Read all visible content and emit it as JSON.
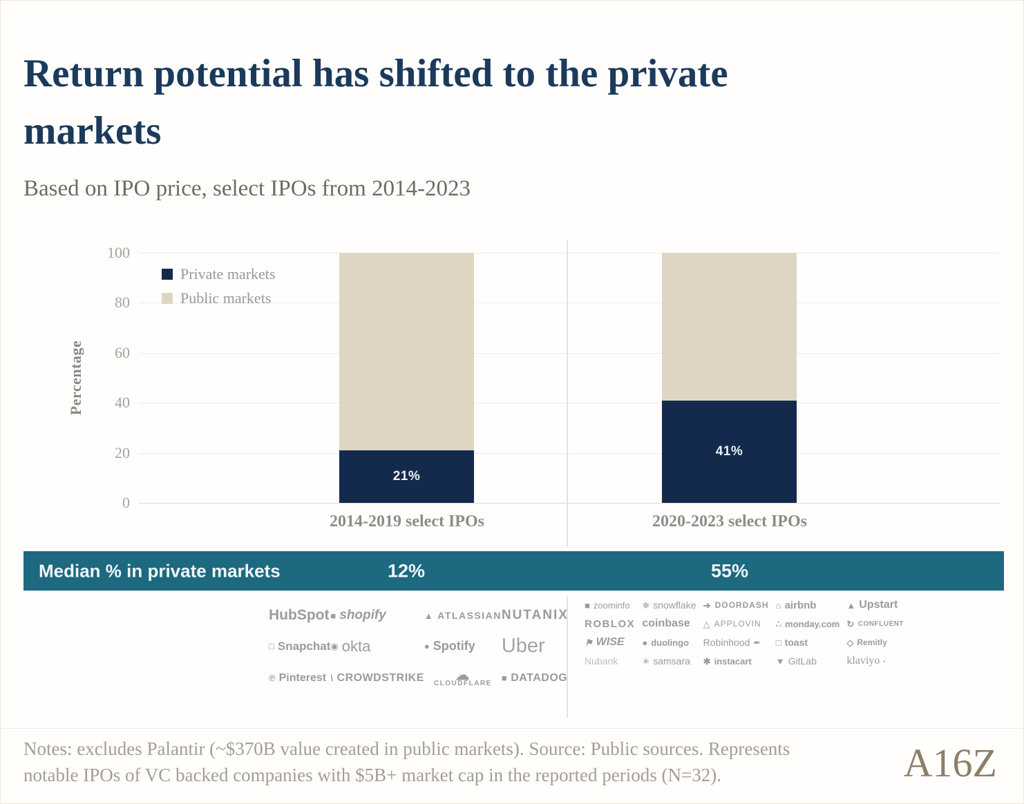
{
  "header": {
    "title_line1": "Return potential has shifted to the private",
    "title_line2": "markets",
    "subtitle": "Based on IPO price, select IPOs from 2014-2023"
  },
  "chart_data": {
    "type": "bar",
    "stacked": true,
    "title": "Return potential has shifted to the private markets",
    "subtitle": "Based on IPO price, select IPOs from 2014-2023",
    "categories": [
      "2014-2019 select IPOs",
      "2020-2023 select IPOs"
    ],
    "series": [
      {
        "name": "Private markets",
        "color": "#132a4c",
        "values": [
          21,
          41
        ]
      },
      {
        "name": "Public markets",
        "color": "#ded6c3",
        "values": [
          79,
          59
        ]
      }
    ],
    "bar_labels": [
      "21%",
      "41%"
    ],
    "ylabel": "Percentage",
    "yticks": [
      "0",
      "20",
      "40",
      "60",
      "80",
      "100"
    ],
    "ylim": [
      0,
      100
    ],
    "grid": true,
    "legend_position": "top-left"
  },
  "median_band": {
    "label": "Median % in private markets",
    "values": [
      "12%",
      "55%"
    ],
    "background": "#1c6980"
  },
  "logos": {
    "group1": [
      "HubSpot",
      "shopify",
      "ATLASSIAN",
      "NUTANIX",
      "Snapchat",
      "okta",
      "Spotify",
      "Uber",
      "Pinterest",
      "CROWDSTRIKE",
      "CLOUDFLARE",
      "DATADOG"
    ],
    "group2": [
      "zoominfo",
      "snowflake",
      "DOORDASH",
      "airbnb",
      "Upstart",
      "ROBLOX",
      "coinbase",
      "APPLOVIN",
      "monday.com",
      "CONFLUENT",
      "WISE",
      "duolingo",
      "Robinhood",
      "toast",
      "Remitly",
      "Nubank",
      "samsara",
      "instacart",
      "GitLab",
      "klaviyo"
    ]
  },
  "footer": {
    "notes_line1": "Notes: excludes Palantir (~$370B value created in public markets). Source: Public sources. Represents",
    "notes_line2": "notable IPOs of VC backed companies with $5B+ market cap in the reported periods (N=32).",
    "brand": "A16Z"
  },
  "colors": {
    "title_navy": "#1b3a5c",
    "bar_navy": "#132a4c",
    "bar_beige": "#ded6c3",
    "banner_teal": "#1c6980"
  }
}
